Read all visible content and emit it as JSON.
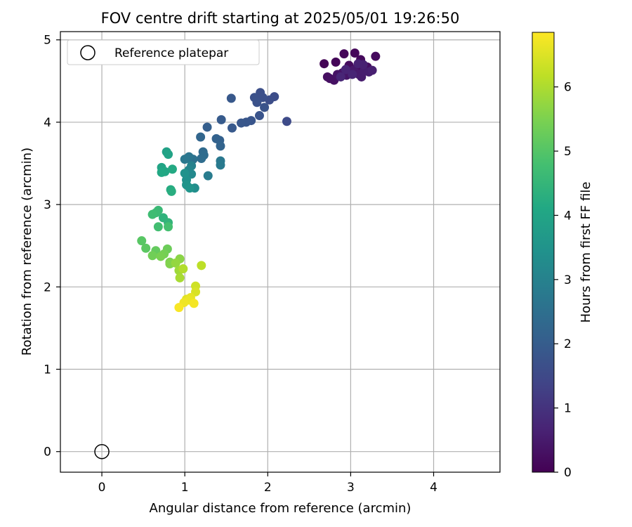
{
  "chart_data": {
    "type": "scatter",
    "title": "FOV centre drift starting at 2025/05/01 19:26:50",
    "xlabel": "Angular distance from reference (arcmin)",
    "ylabel": "Rotation from reference (arcmin)",
    "xlim": [
      -0.5,
      4.8
    ],
    "ylim": [
      -0.25,
      5.1
    ],
    "xticks": [
      0,
      1,
      2,
      3,
      4
    ],
    "yticks": [
      0,
      1,
      2,
      3,
      4,
      5
    ],
    "grid": true,
    "legend": {
      "placement": "top-left",
      "entries": [
        "Reference platepar"
      ]
    },
    "reference_point": {
      "x": 0,
      "y": 0,
      "label": "Reference platepar"
    },
    "colorbar": {
      "label": "Hours from first FF file",
      "colormap": "viridis",
      "range": [
        0,
        6.85
      ],
      "ticks": [
        0,
        1,
        2,
        3,
        4,
        5,
        6
      ]
    },
    "points": [
      {
        "x": 2.68,
        "y": 4.71,
        "h": 0.05
      },
      {
        "x": 2.82,
        "y": 4.73,
        "h": 0.08
      },
      {
        "x": 2.92,
        "y": 4.83,
        "h": 0.1
      },
      {
        "x": 3.05,
        "y": 4.84,
        "h": 0.12
      },
      {
        "x": 3.12,
        "y": 4.76,
        "h": 0.15
      },
      {
        "x": 3.3,
        "y": 4.8,
        "h": 0.18
      },
      {
        "x": 2.98,
        "y": 4.69,
        "h": 0.2
      },
      {
        "x": 3.08,
        "y": 4.66,
        "h": 0.22
      },
      {
        "x": 3.2,
        "y": 4.67,
        "h": 0.25
      },
      {
        "x": 2.72,
        "y": 4.55,
        "h": 0.28
      },
      {
        "x": 2.75,
        "y": 4.53,
        "h": 0.3
      },
      {
        "x": 2.8,
        "y": 4.51,
        "h": 0.32
      },
      {
        "x": 2.84,
        "y": 4.58,
        "h": 0.35
      },
      {
        "x": 2.9,
        "y": 4.6,
        "h": 0.37
      },
      {
        "x": 2.95,
        "y": 4.57,
        "h": 0.4
      },
      {
        "x": 3.0,
        "y": 4.61,
        "h": 0.42
      },
      {
        "x": 3.03,
        "y": 4.63,
        "h": 0.45
      },
      {
        "x": 3.06,
        "y": 4.6,
        "h": 0.47
      },
      {
        "x": 3.1,
        "y": 4.58,
        "h": 0.5
      },
      {
        "x": 3.13,
        "y": 4.55,
        "h": 0.52
      },
      {
        "x": 3.16,
        "y": 4.62,
        "h": 0.55
      },
      {
        "x": 3.22,
        "y": 4.61,
        "h": 0.57
      },
      {
        "x": 3.26,
        "y": 4.63,
        "h": 0.6
      },
      {
        "x": 3.15,
        "y": 4.7,
        "h": 0.62
      },
      {
        "x": 3.09,
        "y": 4.71,
        "h": 0.65
      },
      {
        "x": 2.94,
        "y": 4.64,
        "h": 0.68
      },
      {
        "x": 3.02,
        "y": 4.58,
        "h": 0.7
      },
      {
        "x": 2.88,
        "y": 4.55,
        "h": 0.72
      },
      {
        "x": 2.23,
        "y": 4.01,
        "h": 1.55
      },
      {
        "x": 2.08,
        "y": 4.31,
        "h": 1.6
      },
      {
        "x": 2.02,
        "y": 4.27,
        "h": 1.62
      },
      {
        "x": 1.91,
        "y": 4.36,
        "h": 1.65
      },
      {
        "x": 1.94,
        "y": 4.3,
        "h": 1.68
      },
      {
        "x": 1.84,
        "y": 4.3,
        "h": 1.7
      },
      {
        "x": 1.87,
        "y": 4.24,
        "h": 1.72
      },
      {
        "x": 1.96,
        "y": 4.18,
        "h": 1.75
      },
      {
        "x": 1.9,
        "y": 4.08,
        "h": 1.78
      },
      {
        "x": 1.8,
        "y": 4.02,
        "h": 1.8
      },
      {
        "x": 1.74,
        "y": 4.0,
        "h": 1.82
      },
      {
        "x": 1.68,
        "y": 3.99,
        "h": 1.85
      },
      {
        "x": 1.56,
        "y": 4.29,
        "h": 1.88
      },
      {
        "x": 1.57,
        "y": 3.93,
        "h": 1.9
      },
      {
        "x": 1.44,
        "y": 4.03,
        "h": 1.95
      },
      {
        "x": 1.27,
        "y": 3.94,
        "h": 2.05
      },
      {
        "x": 1.42,
        "y": 3.78,
        "h": 2.1
      },
      {
        "x": 1.38,
        "y": 3.8,
        "h": 2.15
      },
      {
        "x": 1.43,
        "y": 3.71,
        "h": 2.2
      },
      {
        "x": 1.19,
        "y": 3.82,
        "h": 2.25
      },
      {
        "x": 1.22,
        "y": 3.64,
        "h": 2.35
      },
      {
        "x": 1.23,
        "y": 3.6,
        "h": 2.4
      },
      {
        "x": 1.2,
        "y": 3.56,
        "h": 2.45
      },
      {
        "x": 1.1,
        "y": 3.55,
        "h": 2.55
      },
      {
        "x": 1.04,
        "y": 3.56,
        "h": 2.6
      },
      {
        "x": 1.05,
        "y": 3.58,
        "h": 2.65
      },
      {
        "x": 1.0,
        "y": 3.55,
        "h": 2.7
      },
      {
        "x": 1.43,
        "y": 3.53,
        "h": 2.75
      },
      {
        "x": 1.43,
        "y": 3.48,
        "h": 2.8
      },
      {
        "x": 1.28,
        "y": 3.35,
        "h": 2.85
      },
      {
        "x": 1.08,
        "y": 3.47,
        "h": 3.0
      },
      {
        "x": 1.05,
        "y": 3.42,
        "h": 3.1
      },
      {
        "x": 1.08,
        "y": 3.37,
        "h": 3.2
      },
      {
        "x": 1.12,
        "y": 3.2,
        "h": 3.35
      },
      {
        "x": 1.02,
        "y": 3.3,
        "h": 3.4
      },
      {
        "x": 1.0,
        "y": 3.38,
        "h": 3.45
      },
      {
        "x": 1.02,
        "y": 3.24,
        "h": 3.5
      },
      {
        "x": 1.06,
        "y": 3.2,
        "h": 3.55
      },
      {
        "x": 0.78,
        "y": 3.64,
        "h": 3.9
      },
      {
        "x": 0.8,
        "y": 3.61,
        "h": 3.95
      },
      {
        "x": 0.72,
        "y": 3.45,
        "h": 4.0
      },
      {
        "x": 0.76,
        "y": 3.4,
        "h": 4.05
      },
      {
        "x": 0.72,
        "y": 3.39,
        "h": 4.1
      },
      {
        "x": 0.85,
        "y": 3.43,
        "h": 4.15
      },
      {
        "x": 0.83,
        "y": 3.18,
        "h": 4.2
      },
      {
        "x": 0.84,
        "y": 3.16,
        "h": 4.25
      },
      {
        "x": 0.74,
        "y": 2.84,
        "h": 4.4
      },
      {
        "x": 0.8,
        "y": 2.78,
        "h": 4.45
      },
      {
        "x": 0.68,
        "y": 2.93,
        "h": 4.6
      },
      {
        "x": 0.65,
        "y": 2.9,
        "h": 4.65
      },
      {
        "x": 0.61,
        "y": 2.88,
        "h": 4.7
      },
      {
        "x": 0.68,
        "y": 2.73,
        "h": 4.75
      },
      {
        "x": 0.8,
        "y": 2.73,
        "h": 4.8
      },
      {
        "x": 0.48,
        "y": 2.56,
        "h": 5.05
      },
      {
        "x": 0.53,
        "y": 2.47,
        "h": 5.1
      },
      {
        "x": 0.65,
        "y": 2.44,
        "h": 5.2
      },
      {
        "x": 0.79,
        "y": 2.46,
        "h": 5.3
      },
      {
        "x": 0.61,
        "y": 2.38,
        "h": 5.35
      },
      {
        "x": 0.75,
        "y": 2.4,
        "h": 5.4
      },
      {
        "x": 0.71,
        "y": 2.37,
        "h": 5.45
      },
      {
        "x": 0.82,
        "y": 2.3,
        "h": 5.5
      },
      {
        "x": 0.82,
        "y": 2.28,
        "h": 5.55
      },
      {
        "x": 0.94,
        "y": 2.34,
        "h": 5.65
      },
      {
        "x": 0.89,
        "y": 2.29,
        "h": 5.75
      },
      {
        "x": 0.93,
        "y": 2.2,
        "h": 5.85
      },
      {
        "x": 0.94,
        "y": 2.11,
        "h": 5.95
      },
      {
        "x": 0.98,
        "y": 2.22,
        "h": 6.05
      },
      {
        "x": 1.2,
        "y": 2.26,
        "h": 6.15
      },
      {
        "x": 1.13,
        "y": 2.01,
        "h": 6.35
      },
      {
        "x": 1.13,
        "y": 1.94,
        "h": 6.45
      },
      {
        "x": 1.02,
        "y": 1.85,
        "h": 6.55
      },
      {
        "x": 1.07,
        "y": 1.87,
        "h": 6.6
      },
      {
        "x": 1.05,
        "y": 1.84,
        "h": 6.65
      },
      {
        "x": 0.99,
        "y": 1.81,
        "h": 6.7
      },
      {
        "x": 1.11,
        "y": 1.8,
        "h": 6.75
      },
      {
        "x": 0.93,
        "y": 1.75,
        "h": 6.8
      }
    ]
  }
}
